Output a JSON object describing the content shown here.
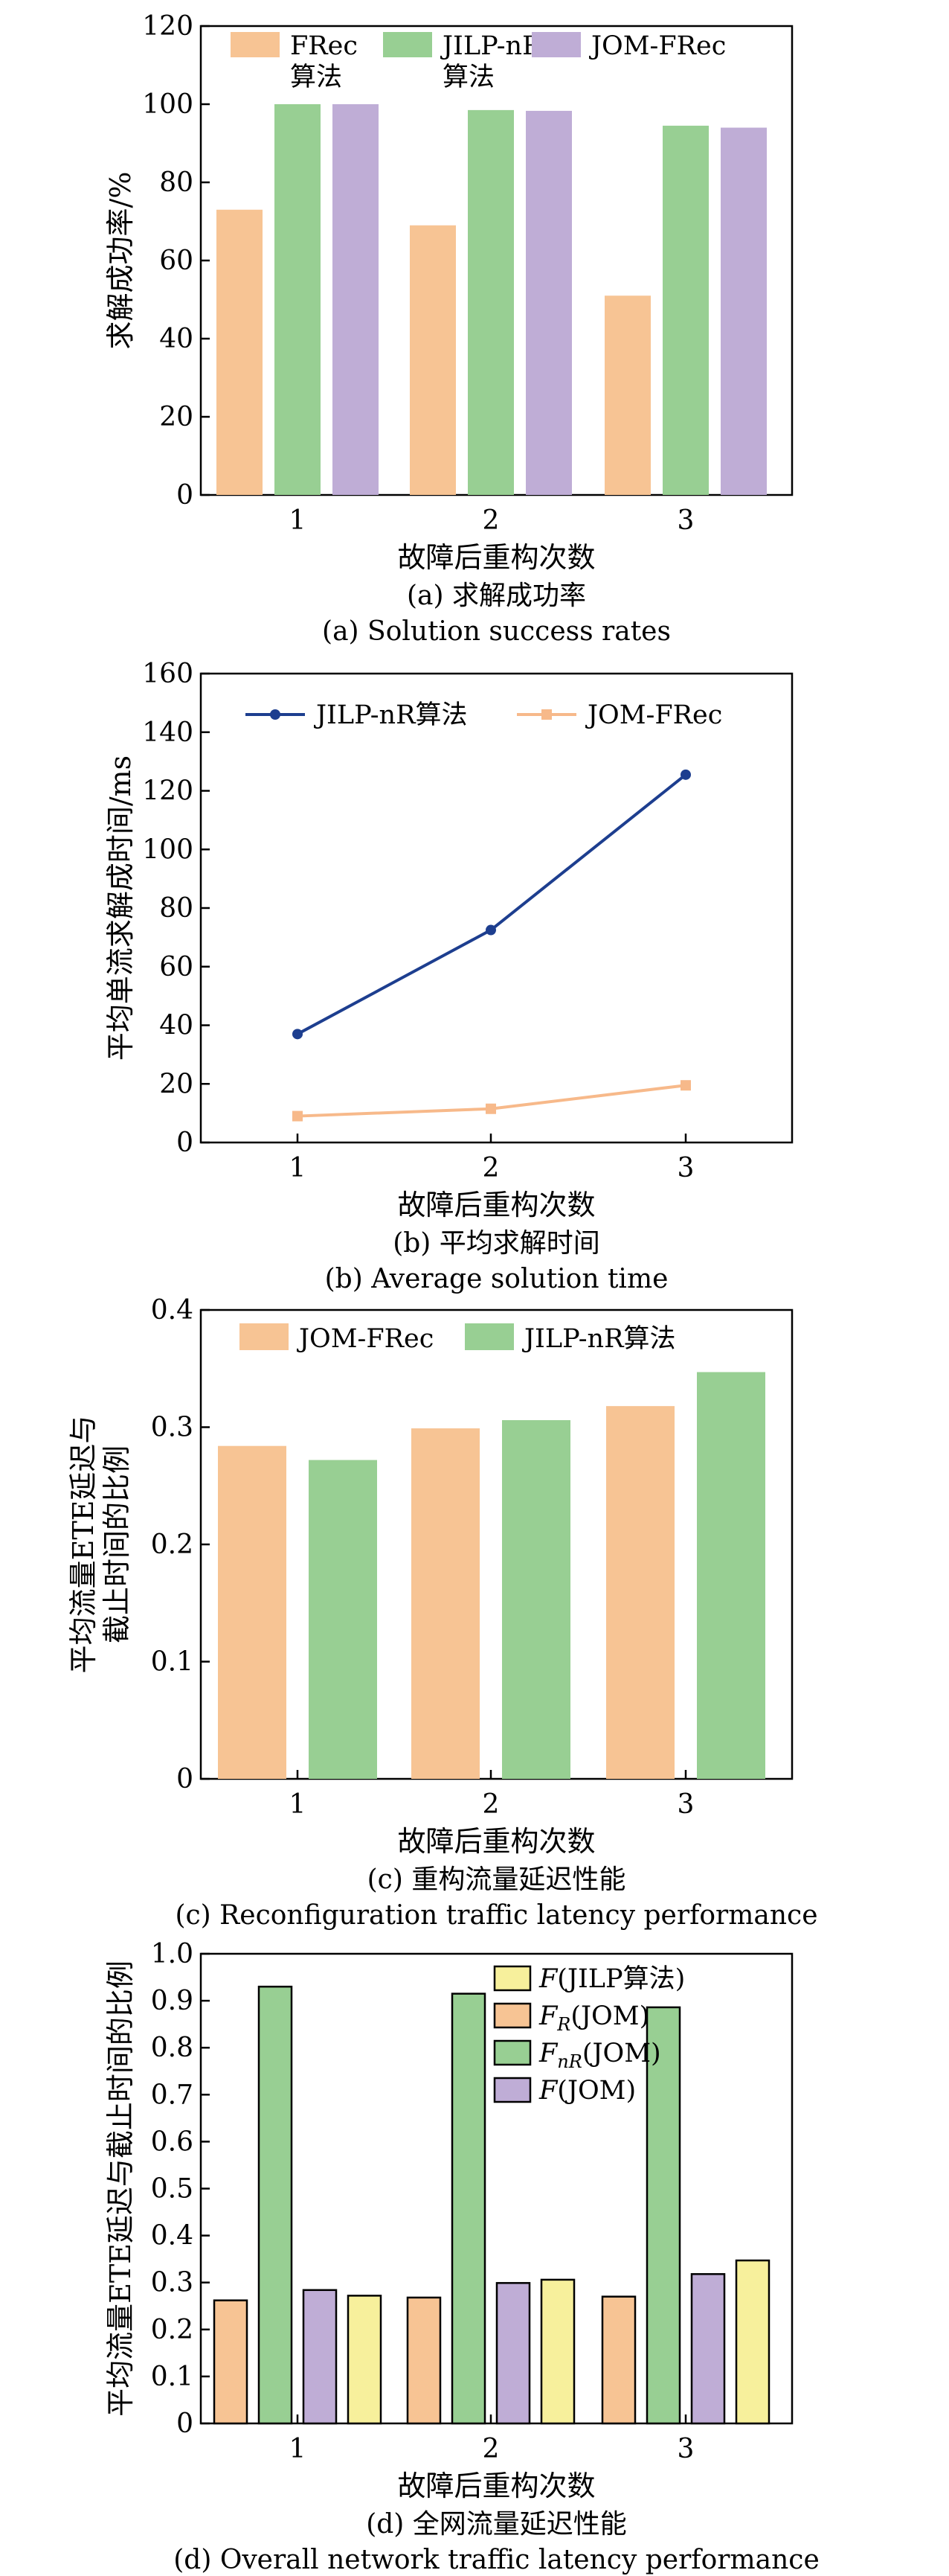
{
  "chart_data": [
    {
      "type": "bar",
      "ylabel": "求解成功率/%",
      "xlabel": "故障后重构次数",
      "caption_cn": "(a) 求解成功率",
      "caption_en": "(a) Solution success rates",
      "categories": [
        "1",
        "2",
        "3"
      ],
      "ylim": [
        0,
        120
      ],
      "yticks": [
        0,
        20,
        40,
        60,
        80,
        100,
        120
      ],
      "legend": "top",
      "series": [
        {
          "name": "FRec算法",
          "color": "#f7c494",
          "values": [
            73,
            69,
            51
          ]
        },
        {
          "name": "JILP-nR算法",
          "color": "#98cf93",
          "values": [
            100,
            98.5,
            94.5
          ]
        },
        {
          "name": "JOM-FRec",
          "color": "#bfadd6",
          "values": [
            100,
            98.3,
            94
          ]
        }
      ]
    },
    {
      "type": "line",
      "ylabel": "平均单流求解成时间/ms",
      "xlabel": "故障后重构次数",
      "caption_cn": "(b) 平均求解时间",
      "caption_en": "(b) Average solution time",
      "x": [
        1,
        2,
        3
      ],
      "xticks": [
        "1",
        "2",
        "3"
      ],
      "ylim": [
        0,
        160
      ],
      "yticks": [
        0,
        20,
        40,
        60,
        80,
        100,
        120,
        140,
        160
      ],
      "legend": "top",
      "series": [
        {
          "name": "JILP-nR算法",
          "color": "#1d3e8f",
          "marker": "circle",
          "values": [
            37,
            72.5,
            125.5
          ]
        },
        {
          "name": "JOM-FRec",
          "color": "#f7b98a",
          "marker": "square",
          "values": [
            9,
            11.5,
            19.5
          ]
        }
      ]
    },
    {
      "type": "bar",
      "ylabel": [
        "平均流量ETE延迟与",
        "截止时间的比例"
      ],
      "xlabel": "故障后重构次数",
      "caption_cn": "(c) 重构流量延迟性能",
      "caption_en": "(c) Reconfiguration traffic latency performance",
      "categories": [
        "1",
        "2",
        "3"
      ],
      "ylim": [
        0,
        0.4
      ],
      "yticks": [
        "0",
        "0.1",
        "0.2",
        "0.3",
        "0.4"
      ],
      "legend": "top",
      "series": [
        {
          "name": "JOM-FRec",
          "color": "#f7c494",
          "values": [
            0.284,
            0.299,
            0.318
          ]
        },
        {
          "name": "JILP-nR算法",
          "color": "#98cf93",
          "values": [
            0.272,
            0.306,
            0.347
          ]
        }
      ]
    },
    {
      "type": "bar",
      "ylabel": "平均流量ETE延迟与截止时间的比例",
      "xlabel": "故障后重构次数",
      "caption_cn": "(d) 全网流量延迟性能",
      "caption_en": "(d) Overall network traffic latency performance",
      "categories": [
        "1",
        "2",
        "3"
      ],
      "ylim": [
        0,
        1.0
      ],
      "yticks": [
        "0",
        "0.1",
        "0.2",
        "0.3",
        "0.4",
        "0.5",
        "0.6",
        "0.7",
        "0.8",
        "0.9",
        "1.0"
      ],
      "legend": "top-right",
      "series": [
        {
          "name": "F(JOM)",
          "legend_main": "F",
          "legend_sub": "R",
          "legend_tail": "(JOM)",
          "legend_order": 1,
          "color": "#f7c494",
          "values": [
            0.262,
            0.268,
            0.27
          ]
        },
        {
          "name": "F(JOM)",
          "legend_main": "F",
          "legend_sub": "nR",
          "legend_tail": "(JOM)",
          "legend_order": 2,
          "color": "#98cf93",
          "values": [
            0.93,
            0.915,
            0.886
          ]
        },
        {
          "name": "F(JOM)",
          "legend_main": "F",
          "legend_sub": "",
          "legend_tail": "(JOM)",
          "legend_order": 3,
          "color": "#bfadd6",
          "values": [
            0.284,
            0.299,
            0.318
          ]
        },
        {
          "name": "F(JILP算法)",
          "legend_main": "F",
          "legend_sub": "",
          "legend_tail": "(JILP算法)",
          "legend_order": 0,
          "color": "#f7f09c",
          "values": [
            0.272,
            0.306,
            0.347
          ]
        }
      ]
    }
  ]
}
